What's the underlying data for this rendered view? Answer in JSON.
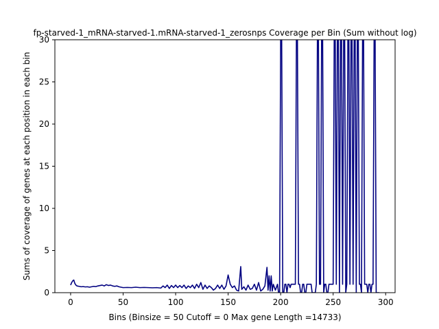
{
  "chart_data": {
    "type": "line",
    "title": "fp-starved-1_mRNA-starved-1.mRNA-starved-1_zerosnps Coverage per Bin (Sum without log)",
    "xlabel": "Bins  (Binsize = 50 Cutoff = 0 Max gene Length =14733)",
    "ylabel": "Sums of coverage of genes at each position in each bin",
    "xlim": [
      -15,
      309
    ],
    "ylim": [
      0,
      30
    ],
    "xticks": [
      0,
      50,
      100,
      150,
      200,
      250,
      300
    ],
    "yticks": [
      0,
      5,
      10,
      15,
      20,
      25,
      30
    ],
    "grid": false,
    "line_color": "#000080",
    "series": [
      {
        "points": [
          [
            0,
            0.9
          ],
          [
            1,
            1.2
          ],
          [
            2,
            1.4
          ],
          [
            3,
            1.5
          ],
          [
            4,
            1.1
          ],
          [
            5,
            0.9
          ],
          [
            6,
            0.8
          ],
          [
            8,
            0.75
          ],
          [
            10,
            0.7
          ],
          [
            12,
            0.72
          ],
          [
            14,
            0.68
          ],
          [
            16,
            0.7
          ],
          [
            18,
            0.65
          ],
          [
            20,
            0.7
          ],
          [
            22,
            0.75
          ],
          [
            24,
            0.72
          ],
          [
            26,
            0.8
          ],
          [
            28,
            0.85
          ],
          [
            30,
            0.9
          ],
          [
            32,
            0.8
          ],
          [
            34,
            0.95
          ],
          [
            36,
            0.85
          ],
          [
            38,
            0.9
          ],
          [
            40,
            0.8
          ],
          [
            42,
            0.75
          ],
          [
            44,
            0.8
          ],
          [
            46,
            0.7
          ],
          [
            48,
            0.65
          ],
          [
            50,
            0.6
          ],
          [
            54,
            0.62
          ],
          [
            58,
            0.6
          ],
          [
            62,
            0.65
          ],
          [
            66,
            0.6
          ],
          [
            70,
            0.62
          ],
          [
            74,
            0.6
          ],
          [
            78,
            0.58
          ],
          [
            82,
            0.6
          ],
          [
            86,
            0.55
          ],
          [
            88,
            0.8
          ],
          [
            90,
            0.6
          ],
          [
            92,
            0.9
          ],
          [
            94,
            0.5
          ],
          [
            96,
            0.85
          ],
          [
            98,
            0.6
          ],
          [
            100,
            0.9
          ],
          [
            102,
            0.6
          ],
          [
            104,
            0.85
          ],
          [
            106,
            0.6
          ],
          [
            108,
            0.9
          ],
          [
            110,
            0.5
          ],
          [
            112,
            0.8
          ],
          [
            114,
            0.6
          ],
          [
            116,
            0.9
          ],
          [
            118,
            0.5
          ],
          [
            120,
            1.0
          ],
          [
            122,
            0.6
          ],
          [
            124,
            1.2
          ],
          [
            126,
            0.4
          ],
          [
            128,
            0.9
          ],
          [
            130,
            0.5
          ],
          [
            132,
            0.8
          ],
          [
            134,
            0.6
          ],
          [
            136,
            0.3
          ],
          [
            138,
            0.5
          ],
          [
            140,
            0.9
          ],
          [
            142,
            0.5
          ],
          [
            144,
            0.9
          ],
          [
            146,
            0.4
          ],
          [
            148,
            0.8
          ],
          [
            150,
            2.1
          ],
          [
            152,
            1.0
          ],
          [
            154,
            0.6
          ],
          [
            156,
            0.8
          ],
          [
            158,
            0.3
          ],
          [
            160,
            0.2
          ],
          [
            162,
            3.1
          ],
          [
            163,
            0.4
          ],
          [
            165,
            0.7
          ],
          [
            167,
            0.3
          ],
          [
            169,
            0.9
          ],
          [
            171,
            0.4
          ],
          [
            173,
            0.5
          ],
          [
            175,
            1.0
          ],
          [
            177,
            0.3
          ],
          [
            179,
            1.2
          ],
          [
            181,
            0.2
          ],
          [
            183,
            0.4
          ],
          [
            185,
            0.8
          ],
          [
            187,
            3.0
          ],
          [
            188,
            0.3
          ],
          [
            189,
            2.0
          ],
          [
            190,
            0.2
          ],
          [
            191,
            2.0
          ],
          [
            192,
            0.2
          ],
          [
            193,
            1.0
          ],
          [
            195,
            0.3
          ],
          [
            197,
            1.0
          ],
          [
            198,
            0.0
          ],
          [
            199,
            0.0
          ],
          [
            200,
            30
          ],
          [
            201,
            30
          ],
          [
            202,
            0.0
          ],
          [
            203,
            0.0
          ],
          [
            204,
            1.0
          ],
          [
            205,
            1.0
          ],
          [
            206,
            0.0
          ],
          [
            207,
            1.0
          ],
          [
            208,
            1.0
          ],
          [
            209,
            0.6
          ],
          [
            210,
            1.0
          ],
          [
            214,
            1.0
          ],
          [
            215,
            30
          ],
          [
            216,
            30
          ],
          [
            217,
            1.0
          ],
          [
            218,
            1.0
          ],
          [
            219,
            0.0
          ],
          [
            220,
            0.0
          ],
          [
            221,
            1.0
          ],
          [
            222,
            1.0
          ],
          [
            223,
            0.0
          ],
          [
            224,
            0.0
          ],
          [
            225,
            1.0
          ],
          [
            229,
            1.0
          ],
          [
            230,
            0.0
          ],
          [
            233,
            0.0
          ],
          [
            234,
            1.0
          ],
          [
            235,
            30
          ],
          [
            236,
            30
          ],
          [
            237,
            1.0
          ],
          [
            238,
            1.0
          ],
          [
            239,
            30
          ],
          [
            240,
            30
          ],
          [
            241,
            0.0
          ],
          [
            242,
            1.0
          ],
          [
            243,
            1.0
          ],
          [
            244,
            0.0
          ],
          [
            245,
            0.0
          ],
          [
            246,
            1.0
          ],
          [
            250,
            1.0
          ],
          [
            251,
            30
          ],
          [
            252,
            30
          ],
          [
            253,
            1.0
          ],
          [
            254,
            30
          ],
          [
            255,
            30
          ],
          [
            256,
            0.0
          ],
          [
            257,
            30
          ],
          [
            258,
            30
          ],
          [
            259,
            1.0
          ],
          [
            260,
            30
          ],
          [
            261,
            30
          ],
          [
            262,
            0.0
          ],
          [
            263,
            1.0
          ],
          [
            264,
            30
          ],
          [
            265,
            30
          ],
          [
            266,
            1.0
          ],
          [
            267,
            30
          ],
          [
            268,
            30
          ],
          [
            269,
            1.0
          ],
          [
            270,
            30
          ],
          [
            271,
            30
          ],
          [
            272,
            0.0
          ],
          [
            273,
            30
          ],
          [
            274,
            30
          ],
          [
            275,
            1.0
          ],
          [
            276,
            1.0
          ],
          [
            277,
            0.0
          ],
          [
            278,
            30
          ],
          [
            279,
            30
          ],
          [
            280,
            1.0
          ],
          [
            282,
            1.0
          ],
          [
            283,
            0.0
          ],
          [
            284,
            1.0
          ],
          [
            285,
            1.0
          ],
          [
            286,
            0.0
          ],
          [
            287,
            1.0
          ],
          [
            288,
            1.0
          ],
          [
            289,
            30
          ],
          [
            290,
            30
          ],
          [
            291,
            0.0
          ],
          [
            292,
            0.0
          ],
          [
            293,
            0.0
          ],
          [
            294,
            0.0
          ]
        ]
      }
    ]
  }
}
